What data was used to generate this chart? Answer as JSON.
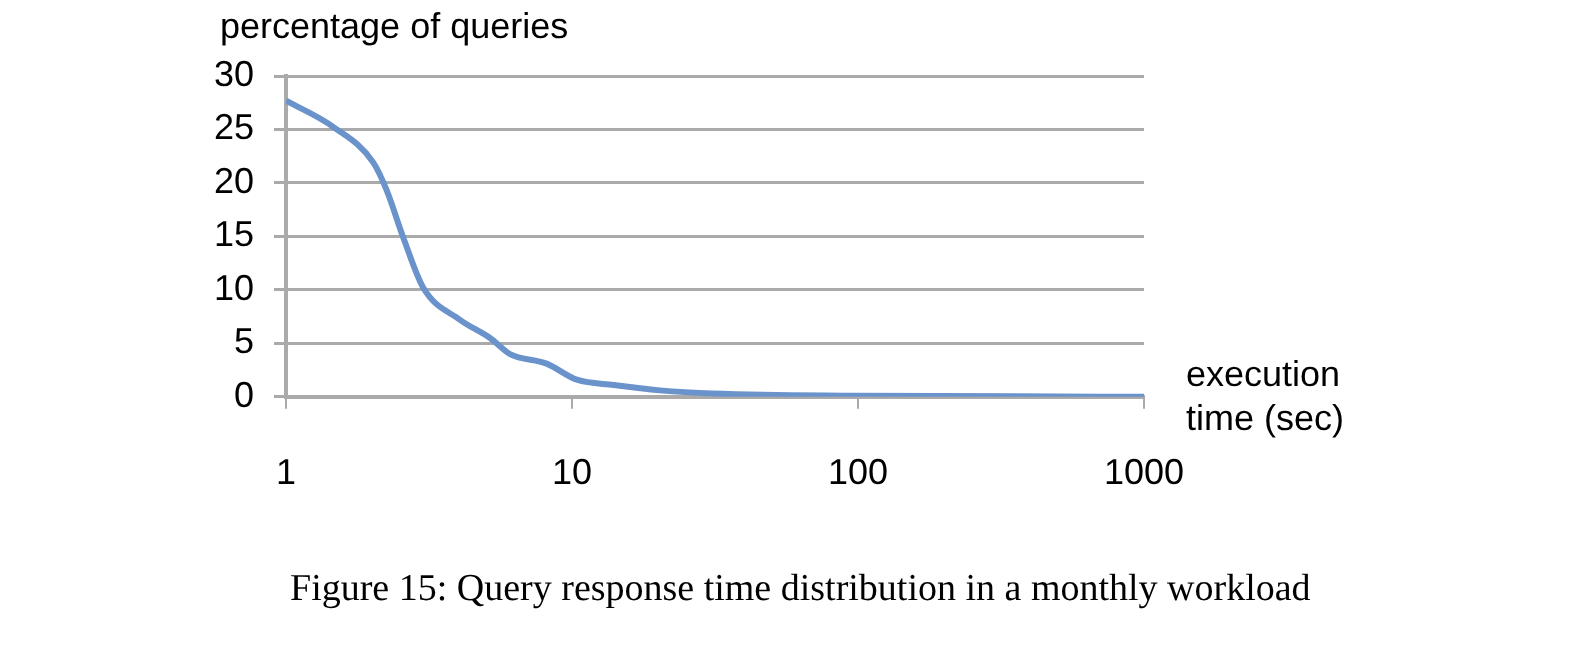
{
  "chart_data": {
    "type": "line",
    "ylabel": "percentage of queries",
    "xlabel": "execution time (sec)",
    "annotations": [
      "Figure 15: Query response time distribution in a monthly workload"
    ],
    "log": "x",
    "xlim": [
      1,
      1000
    ],
    "xticks": [
      1,
      10,
      100,
      1000
    ],
    "ylim": [
      0,
      30
    ],
    "yticks": [
      0,
      5,
      10,
      15,
      20,
      25,
      30
    ],
    "grid": "y",
    "legend": false,
    "marker": "none",
    "line_style": "solid",
    "series": [
      {
        "color": "#6a93cb",
        "x": [
          1,
          1.47,
          2.02,
          2.25,
          2.57,
          3.02,
          4.06,
          5.17,
          6.07,
          8.15,
          10.4,
          14,
          20.3,
          31,
          100,
          1000
        ],
        "values": [
          27.7,
          25.2,
          21.9,
          19.3,
          14.9,
          10.2,
          7.2,
          5.5,
          4.0,
          3.1,
          1.6,
          1.1,
          0.6,
          0.3,
          0.1,
          0
        ]
      }
    ]
  }
}
